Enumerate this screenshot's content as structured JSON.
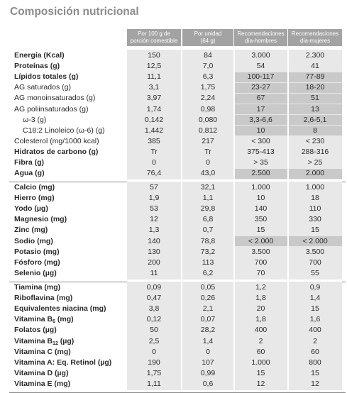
{
  "title": "Composición nutricional",
  "columns": [
    {
      "line1": "Por 100 g de",
      "line2": "porción comestible"
    },
    {
      "line1": "Por unidad",
      "line2": "(64 g)"
    },
    {
      "line1": "Recomendaciones",
      "line2": "día-hombres"
    },
    {
      "line1": "Recomendaciones",
      "line2": "día-mujeres"
    }
  ],
  "groups": [
    {
      "rows": [
        {
          "label": "Energía (Kcal)",
          "bold": true,
          "values": [
            "150",
            "84",
            "3.000",
            "2.300"
          ]
        },
        {
          "label": "Proteínas (g)",
          "bold": true,
          "values": [
            "12,5",
            "7,0",
            "54",
            "41"
          ]
        },
        {
          "label": "Lípidos totales (g)",
          "bold": true,
          "values": [
            "11,1",
            "6,3",
            "100-117",
            "77-89"
          ],
          "highlight": true
        },
        {
          "label": "AG saturados (g)",
          "values": [
            "3,1",
            "1,75",
            "23-27",
            "18-20"
          ],
          "highlight": true
        },
        {
          "label": "AG monoinsaturados (g)",
          "values": [
            "3,97",
            "2,24",
            "67",
            "51"
          ],
          "highlight": true
        },
        {
          "label": "AG poliinsaturados (g)",
          "values": [
            "1,74",
            "0,98",
            "17",
            "13"
          ],
          "highlight": true
        },
        {
          "label": "ω-3 (g)",
          "indent": true,
          "values": [
            "0,142",
            "0,080",
            "3,3-6,6",
            "2,6-5,1"
          ],
          "highlight": true
        },
        {
          "label": "C18:2 Linoleico (ω-6) (g)",
          "indent": true,
          "values": [
            "1,442",
            "0,812",
            "10",
            "8"
          ],
          "highlight": true
        },
        {
          "label": "Colesterol (mg/1000 kcal)",
          "values": [
            "385",
            "217",
            "< 300",
            "< 230"
          ]
        },
        {
          "label": "Hidratos de carbono (g)",
          "bold": true,
          "values": [
            "Tr",
            "Tr",
            "375-413",
            "288-316"
          ]
        },
        {
          "label": "Fibra (g)",
          "bold": true,
          "values": [
            "0",
            "0",
            "> 35",
            "> 25"
          ]
        },
        {
          "label": "Agua (g)",
          "bold": true,
          "values": [
            "76,4",
            "43,0",
            "2.500",
            "2.000"
          ],
          "highlight": true
        }
      ]
    },
    {
      "rows": [
        {
          "label": "Calcio (mg)",
          "bold": true,
          "values": [
            "57",
            "32,1",
            "1.000",
            "1.000"
          ]
        },
        {
          "label": "Hierro (mg)",
          "bold": true,
          "values": [
            "1,9",
            "1,1",
            "10",
            "18"
          ]
        },
        {
          "label": "Yodo (µg)",
          "bold": true,
          "values": [
            "53",
            "29,8",
            "140",
            "110"
          ]
        },
        {
          "label": "Magnesio (mg)",
          "bold": true,
          "values": [
            "12",
            "6,8",
            "350",
            "330"
          ]
        },
        {
          "label": "Zinc (mg)",
          "bold": true,
          "values": [
            "1,3",
            "0,7",
            "15",
            "15"
          ]
        },
        {
          "label": "Sodio (mg)",
          "bold": true,
          "values": [
            "140",
            "78,8",
            "< 2.000",
            "< 2.000"
          ],
          "highlight": true
        },
        {
          "label": "Potasio (mg)",
          "bold": true,
          "values": [
            "130",
            "73,2",
            "3.500",
            "3.500"
          ]
        },
        {
          "label": "Fósforo (mg)",
          "bold": true,
          "values": [
            "200",
            "113",
            "700",
            "700"
          ]
        },
        {
          "label": "Selenio (µg)",
          "bold": true,
          "values": [
            "11",
            "6,2",
            "70",
            "55"
          ]
        }
      ]
    },
    {
      "rows": [
        {
          "label": "Tiamina (mg)",
          "bold": true,
          "values": [
            "0,09",
            "0,05",
            "1,2",
            "0,9"
          ]
        },
        {
          "label": "Riboflavina (mg)",
          "bold": true,
          "values": [
            "0,47",
            "0,26",
            "1,8",
            "1,4"
          ]
        },
        {
          "label": "Equivalentes niacina (mg)",
          "bold": true,
          "values": [
            "3,8",
            "2,1",
            "20",
            "15"
          ]
        },
        {
          "label": "Vitamina B",
          "sub": "6",
          "after": " (mg)",
          "bold": true,
          "values": [
            "0,12",
            "0,07",
            "1,8",
            "1,6"
          ]
        },
        {
          "label": "Folatos (µg)",
          "bold": true,
          "values": [
            "50",
            "28,2",
            "400",
            "400"
          ]
        },
        {
          "label": "Vitamina B",
          "sub": "12",
          "after": " (µg)",
          "bold": true,
          "values": [
            "2,5",
            "1,4",
            "2",
            "2"
          ]
        },
        {
          "label": "Vitamina C (mg)",
          "bold": true,
          "values": [
            "0",
            "0",
            "60",
            "60"
          ]
        },
        {
          "label": "Vitamina A: Eq. Retinol (µg)",
          "bold": true,
          "values": [
            "190",
            "107",
            "1.000",
            "800"
          ]
        },
        {
          "label": "Vitamina D (µg)",
          "bold": true,
          "values": [
            "1,75",
            "0,99",
            "15",
            "15"
          ]
        },
        {
          "label": "Vitamina E (mg)",
          "bold": true,
          "values": [
            "1,11",
            "0,6",
            "12",
            "12"
          ]
        }
      ]
    }
  ]
}
